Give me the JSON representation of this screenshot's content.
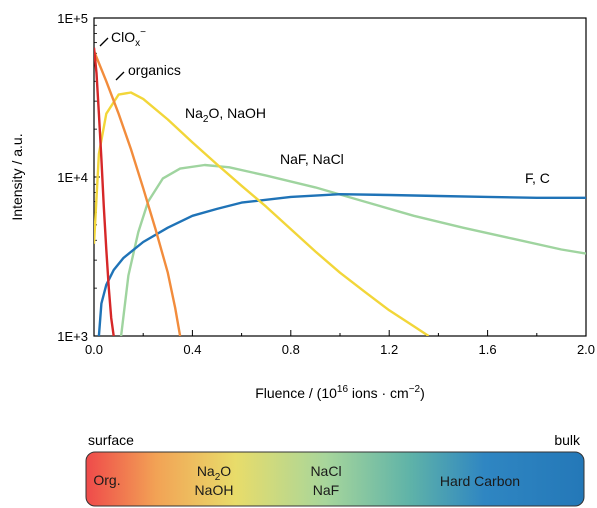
{
  "chart_data": {
    "type": "line",
    "xlabel": {
      "pre": "Fluence / (10",
      "sup": "16",
      "post": " ions · cm",
      "sup2": "−2",
      "end": ")"
    },
    "ylabel": "Intensity / a.u.",
    "x_ticks": [
      "0.0",
      "0.4",
      "0.8",
      "1.2",
      "1.6",
      "2.0"
    ],
    "x_tick_values": [
      0.0,
      0.4,
      0.8,
      1.2,
      1.6,
      2.0
    ],
    "y_ticks": [
      "1E+3",
      "1E+4",
      "1E+5"
    ],
    "y_tick_values": [
      1000,
      10000,
      100000
    ],
    "xlim": [
      0,
      2.0
    ],
    "ylim": [
      1000,
      100000
    ],
    "y_scale": "log",
    "series": [
      {
        "name": "ClOx−",
        "color": "#d62728",
        "x": [
          0.0,
          0.01,
          0.02,
          0.03,
          0.04,
          0.05,
          0.06,
          0.07,
          0.08
        ],
        "y": [
          65000,
          45000,
          25000,
          13000,
          6500,
          3500,
          2000,
          1300,
          1000
        ]
      },
      {
        "name": "organics",
        "color": "#f28c3c",
        "x": [
          0.0,
          0.05,
          0.1,
          0.15,
          0.2,
          0.25,
          0.3,
          0.33,
          0.35
        ],
        "y": [
          62000,
          40000,
          25000,
          15000,
          8500,
          4700,
          2500,
          1500,
          1000
        ]
      },
      {
        "name": "Na2O, NaOH",
        "color": "#f2d639",
        "x": [
          0.0,
          0.02,
          0.05,
          0.1,
          0.15,
          0.2,
          0.3,
          0.4,
          0.5,
          0.6,
          0.7,
          0.8,
          0.9,
          1.0,
          1.1,
          1.2,
          1.3,
          1.36
        ],
        "y": [
          3800,
          14000,
          25000,
          33000,
          34000,
          31000,
          23000,
          16500,
          12000,
          8800,
          6500,
          4700,
          3400,
          2500,
          1900,
          1450,
          1150,
          1000
        ]
      },
      {
        "name": "NaF, NaCl",
        "color": "#9fd49f",
        "x": [
          0.11,
          0.14,
          0.18,
          0.22,
          0.28,
          0.35,
          0.45,
          0.55,
          0.7,
          0.9,
          1.1,
          1.3,
          1.5,
          1.7,
          1.9,
          2.0
        ],
        "y": [
          1000,
          2400,
          4500,
          7000,
          9800,
          11300,
          11900,
          11500,
          10200,
          8600,
          7000,
          5700,
          4800,
          4100,
          3500,
          3300
        ]
      },
      {
        "name": "F, C",
        "color": "#1f73b7",
        "x": [
          0.02,
          0.03,
          0.05,
          0.08,
          0.12,
          0.2,
          0.3,
          0.4,
          0.5,
          0.6,
          0.8,
          1.0,
          1.2,
          1.4,
          1.6,
          1.8,
          2.0
        ],
        "y": [
          1000,
          1600,
          2100,
          2600,
          3100,
          3900,
          4800,
          5700,
          6300,
          6900,
          7500,
          7800,
          7700,
          7600,
          7500,
          7400,
          7400
        ]
      }
    ],
    "annotations": [
      {
        "text": "ClO",
        "sub": "x",
        "sup": "−"
      },
      {
        "text": "organics"
      },
      {
        "text_parts": [
          "Na",
          "2",
          "O, NaOH"
        ]
      },
      {
        "text": "NaF, NaCl"
      },
      {
        "text": "F, C"
      }
    ]
  },
  "depth_bar": {
    "left_label": "surface",
    "right_label": "bulk",
    "segments": [
      {
        "lines": [
          "Org."
        ]
      },
      {
        "line1": [
          "Na",
          "2",
          "O"
        ],
        "line2": "NaOH"
      },
      {
        "lines": [
          "NaCl",
          "NaF"
        ]
      },
      {
        "lines": [
          "Hard Carbon"
        ]
      }
    ],
    "gradient_colors": [
      "#ef4a4a",
      "#f2a255",
      "#e8dc6a",
      "#a8d69b",
      "#5fb3a8",
      "#2f86c2",
      "#2478b8"
    ]
  }
}
